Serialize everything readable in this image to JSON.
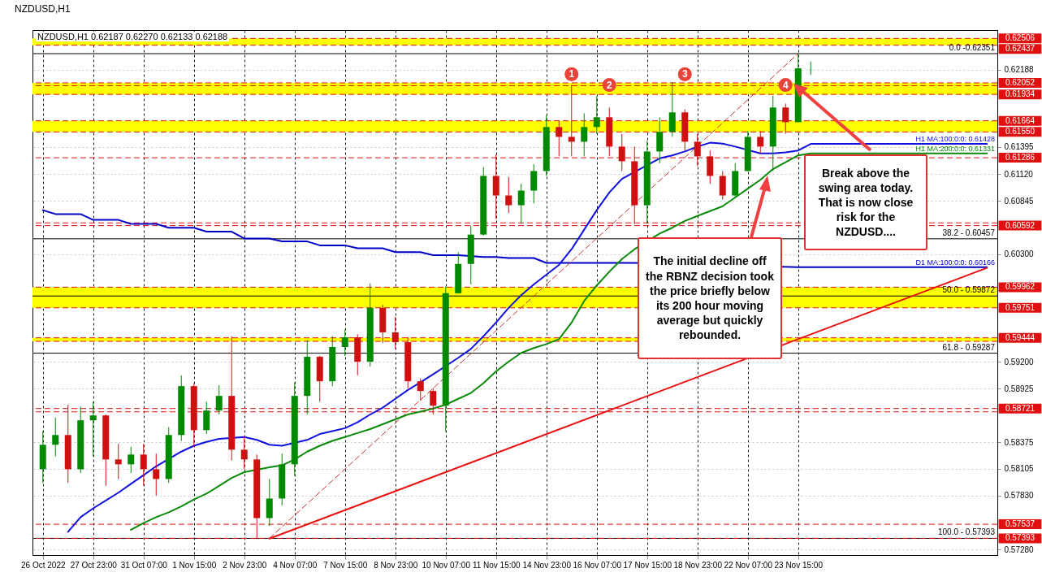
{
  "chart_data": {
    "type": "candlestick",
    "title": "NZDUSD,H1",
    "subtitle": "NZDUSD,H1  0.62187 0.62270 0.62133 0.62188",
    "categories": [
      "26 Oct 2022",
      null,
      null,
      null,
      "27 Oct 23:00",
      null,
      null,
      null,
      "31 Oct 07:00",
      null,
      null,
      null,
      "1 Nov 15:00",
      null,
      null,
      null,
      "2 Nov 23:00",
      null,
      null,
      null,
      "4 Nov 07:00",
      null,
      null,
      null,
      "7 Nov 15:00",
      null,
      null,
      null,
      "8 Nov 23:00",
      null,
      null,
      null,
      "10 Nov 07:00",
      null,
      null,
      null,
      "11 Nov 15:00",
      null,
      null,
      null,
      "14 Nov 23:00",
      null,
      null,
      null,
      "16 Nov 07:00",
      null,
      null,
      null,
      "17 Nov 15:00",
      null,
      null,
      null,
      "18 Nov 23:00",
      null,
      null,
      null,
      "22 Nov 07:00",
      null,
      null,
      null,
      "23 Nov 15:00",
      null,
      null,
      null,
      null,
      null,
      null,
      null,
      null,
      null,
      null,
      null,
      null,
      null,
      null,
      null
    ],
    "ohlc": [
      [
        0.581,
        0.5849,
        0.5796,
        0.5835
      ],
      [
        0.5835,
        0.5863,
        0.5823,
        0.5845
      ],
      [
        0.5845,
        0.5876,
        0.5796,
        0.581
      ],
      [
        0.581,
        0.5874,
        0.5806,
        0.586
      ],
      [
        0.586,
        0.5879,
        0.5823,
        0.5865
      ],
      [
        0.5865,
        0.5866,
        0.5793,
        0.582
      ],
      [
        0.582,
        0.5836,
        0.58,
        0.5815
      ],
      [
        0.5815,
        0.5833,
        0.5806,
        0.5825
      ],
      [
        0.5825,
        0.5836,
        0.5793,
        0.581
      ],
      [
        0.581,
        0.5826,
        0.5783,
        0.58
      ],
      [
        0.58,
        0.5853,
        0.5796,
        0.5845
      ],
      [
        0.5845,
        0.5906,
        0.5839,
        0.5895
      ],
      [
        0.5895,
        0.5898,
        0.5833,
        0.585
      ],
      [
        0.585,
        0.5879,
        0.5846,
        0.587
      ],
      [
        0.587,
        0.5896,
        0.5866,
        0.5885
      ],
      [
        0.5885,
        0.5946,
        0.5819,
        0.583
      ],
      [
        0.583,
        0.5843,
        0.581,
        0.582
      ],
      [
        0.582,
        0.5825,
        0.5739,
        0.576
      ],
      [
        0.576,
        0.58,
        0.5752,
        0.578
      ],
      [
        0.578,
        0.5826,
        0.5773,
        0.5815
      ],
      [
        0.5815,
        0.5899,
        0.5803,
        0.5885
      ],
      [
        0.5885,
        0.5942,
        0.5866,
        0.5925
      ],
      [
        0.5925,
        0.5926,
        0.5879,
        0.59
      ],
      [
        0.59,
        0.5946,
        0.5895,
        0.5935
      ],
      [
        0.5935,
        0.5953,
        0.5926,
        0.5945
      ],
      [
        0.5945,
        0.5948,
        0.5906,
        0.592
      ],
      [
        0.592,
        0.6,
        0.5915,
        0.5975
      ],
      [
        0.5975,
        0.5978,
        0.5939,
        0.595
      ],
      [
        0.595,
        0.5966,
        0.5933,
        0.594
      ],
      [
        0.594,
        0.5945,
        0.5893,
        0.59
      ],
      [
        0.59,
        0.5903,
        0.588,
        0.589
      ],
      [
        0.589,
        0.5893,
        0.5866,
        0.5875
      ],
      [
        0.5875,
        0.5997,
        0.5848,
        0.599
      ],
      [
        0.599,
        0.6032,
        0.599,
        0.602
      ],
      [
        0.602,
        0.6059,
        0.5999,
        0.605
      ],
      [
        0.605,
        0.6119,
        0.6049,
        0.611
      ],
      [
        0.611,
        0.6132,
        0.6066,
        0.609
      ],
      [
        0.609,
        0.6109,
        0.6072,
        0.608
      ],
      [
        0.608,
        0.6102,
        0.6061,
        0.6095
      ],
      [
        0.6095,
        0.6122,
        0.6082,
        0.6115
      ],
      [
        0.6115,
        0.6172,
        0.611,
        0.616
      ],
      [
        0.616,
        0.6167,
        0.613,
        0.615
      ],
      [
        0.615,
        0.6203,
        0.613,
        0.6145
      ],
      [
        0.6145,
        0.6174,
        0.613,
        0.616
      ],
      [
        0.616,
        0.6192,
        0.6153,
        0.617
      ],
      [
        0.617,
        0.618,
        0.613,
        0.614
      ],
      [
        0.614,
        0.6153,
        0.6115,
        0.6125
      ],
      [
        0.6125,
        0.614,
        0.6061,
        0.608
      ],
      [
        0.608,
        0.6146,
        0.6061,
        0.6135
      ],
      [
        0.6135,
        0.617,
        0.6123,
        0.6155
      ],
      [
        0.6155,
        0.6206,
        0.615,
        0.6175
      ],
      [
        0.6175,
        0.6178,
        0.6136,
        0.6145
      ],
      [
        0.6145,
        0.6153,
        0.612,
        0.613
      ],
      [
        0.613,
        0.6136,
        0.6102,
        0.611
      ],
      [
        0.611,
        0.6115,
        0.6086,
        0.609
      ],
      [
        0.609,
        0.6123,
        0.6088,
        0.6115
      ],
      [
        0.6115,
        0.6156,
        0.6115,
        0.615
      ],
      [
        0.615,
        0.6156,
        0.6133,
        0.614
      ],
      [
        0.614,
        0.6192,
        0.6115,
        0.618
      ],
      [
        0.618,
        0.6184,
        0.6153,
        0.6165
      ],
      [
        0.6165,
        0.62351,
        0.6165,
        0.622
      ],
      [
        0.62187,
        0.6227,
        0.62133,
        0.62188
      ],
      null,
      null,
      null,
      null,
      null,
      null,
      null,
      null,
      null,
      null,
      null,
      null,
      null,
      null
    ],
    "series": [
      {
        "type": "line",
        "name": "D1 MA:100:0:0: 0.60166",
        "color": "#0000c8",
        "values": [
          0.6075,
          0.6071,
          0.6071,
          0.6071,
          0.6065,
          0.6065,
          0.6065,
          0.6061,
          0.6061,
          0.6061,
          0.6057,
          0.6057,
          0.6057,
          0.6053,
          0.6053,
          0.6053,
          0.6046,
          0.6046,
          0.6046,
          0.6043,
          0.6043,
          0.6043,
          0.6039,
          0.6039,
          0.6039,
          0.6036,
          0.6036,
          0.6036,
          0.6032,
          0.6032,
          0.6032,
          0.6029,
          0.6029,
          0.6029,
          null,
          0.6027,
          0.6027,
          0.6026,
          0.6026,
          0.6026,
          0.6021,
          0.6021,
          0.6021,
          0.6021,
          0.6021,
          0.6021,
          0.6021,
          0.6021,
          null,
          null,
          null,
          null,
          null,
          null,
          null,
          null,
          null,
          null,
          null,
          null,
          0.60166,
          0.60166,
          0.60166,
          0.60166,
          0.60166,
          0.60166,
          0.60166,
          0.60166,
          0.60166,
          0.60166,
          0.60166,
          0.60166,
          0.60166,
          0.60166,
          0.60166,
          0.60166
        ]
      },
      {
        "type": "line",
        "color": "#e81010",
        "values": [
          null,
          null,
          null,
          null,
          null,
          null,
          null,
          null,
          null,
          null,
          null,
          null,
          null,
          null,
          null,
          null,
          null,
          null,
          0.5739,
          null,
          null,
          null,
          null,
          null,
          null,
          null,
          null,
          null,
          null,
          null,
          null,
          null,
          null,
          null,
          null,
          null,
          null,
          null,
          null,
          null,
          null,
          null,
          null,
          null,
          null,
          null,
          null,
          null,
          null,
          null,
          null,
          null,
          null,
          null,
          null,
          null,
          null,
          null,
          null,
          null,
          null,
          null,
          null,
          null,
          null,
          null,
          null,
          null,
          null,
          null,
          null,
          null,
          null,
          null,
          null,
          0.6016
        ]
      },
      {
        "type": "line",
        "line_style": "dashed",
        "color": "#c03030",
        "values": [
          null,
          null,
          null,
          null,
          null,
          null,
          null,
          null,
          null,
          null,
          null,
          null,
          null,
          null,
          null,
          null,
          null,
          null,
          0.57393,
          null,
          null,
          null,
          null,
          null,
          null,
          null,
          null,
          null,
          null,
          null,
          null,
          null,
          null,
          null,
          null,
          null,
          null,
          null,
          null,
          null,
          null,
          null,
          null,
          null,
          null,
          null,
          null,
          null,
          null,
          null,
          null,
          null,
          null,
          null,
          null,
          null,
          null,
          null,
          null,
          null,
          0.62351,
          null,
          null,
          null,
          null,
          null,
          null,
          null,
          null,
          null,
          null,
          null,
          null,
          null,
          null,
          null
        ]
      },
      {
        "type": "line",
        "name": "H1 MA:200:0:0: 0.61331",
        "color": "#0a8a0a",
        "values": [
          null,
          null,
          null,
          null,
          null,
          null,
          null,
          0.5748,
          0.5755,
          0.5761,
          0.5766,
          0.5772,
          0.5779,
          0.5785,
          0.5793,
          0.5801,
          0.5807,
          null,
          0.5812,
          0.5814,
          0.582,
          0.5828,
          0.5834,
          0.5839,
          0.5843,
          0.5847,
          0.5851,
          0.5856,
          0.5861,
          0.5866,
          0.5869,
          0.5872,
          0.5876,
          0.5882,
          0.5888,
          0.5898,
          0.591,
          0.592,
          0.5929,
          0.5934,
          0.5938,
          0.5943,
          0.596,
          0.5982,
          0.5998,
          0.6012,
          0.6025,
          0.6035,
          null,
          0.6051,
          0.6057,
          0.6064,
          0.6069,
          0.6074,
          0.6079,
          0.6088,
          0.6097,
          0.6106,
          0.6117,
          0.6124,
          0.6131,
          0.61331,
          0.61331,
          0.61331,
          0.61331,
          0.61331,
          0.61331,
          0.61331,
          0.61331,
          0.61331,
          0.61331,
          0.61331,
          0.61331,
          0.61331,
          0.61331,
          0.61331
        ]
      },
      {
        "type": "line",
        "name": "H1 MA:100:0:0: 0.61428",
        "color": "#1010e0",
        "values": [
          null,
          null,
          0.5746,
          0.5761,
          0.577,
          0.5778,
          0.5786,
          0.5795,
          0.5804,
          0.5813,
          null,
          0.5828,
          0.5834,
          0.5838,
          0.5841,
          null,
          0.5843,
          0.584,
          0.5835,
          0.5834,
          null,
          0.584,
          0.5846,
          0.5849,
          0.5852,
          0.5858,
          0.5866,
          0.5873,
          0.5882,
          0.5891,
          0.5899,
          0.5907,
          null,
          0.5924,
          0.5933,
          0.5946,
          0.596,
          0.5975,
          0.5988,
          0.5999,
          0.6009,
          0.6019,
          0.6035,
          0.6055,
          0.6075,
          0.6093,
          0.6107,
          null,
          null,
          0.6128,
          0.6131,
          0.6135,
          0.614,
          0.6144,
          0.6143,
          0.614,
          null,
          0.6133,
          0.6133,
          0.6134,
          0.6136,
          0.61428,
          0.61428,
          0.61428,
          0.61428,
          0.61428,
          0.61428,
          0.61428,
          0.61428,
          0.61428,
          0.61428,
          0.61428,
          0.61428,
          0.61428,
          0.61428,
          0.61428
        ]
      },
      {
        "type": "scatter",
        "marker": "circle",
        "color": "#e8443a",
        "values": [
          null,
          null,
          null,
          null,
          null,
          null,
          null,
          null,
          null,
          null,
          null,
          null,
          null,
          null,
          null,
          null,
          null,
          null,
          null,
          null,
          null,
          null,
          null,
          null,
          null,
          null,
          null,
          null,
          null,
          null,
          null,
          null,
          null,
          null,
          null,
          null,
          null,
          null,
          null,
          null,
          null,
          null,
          0.6214,
          null,
          null,
          0.6203,
          null,
          null,
          null,
          null,
          null,
          0.6214,
          null,
          null,
          null,
          null,
          null,
          null,
          null,
          0.6203,
          null,
          null,
          null,
          null,
          null,
          null,
          null,
          null,
          null,
          null,
          null,
          null,
          null,
          null,
          null,
          null
        ]
      }
    ],
    "ylim": [
      0.57222,
      0.62592
    ],
    "yticks": [
      0.62188,
      0.61395,
      {
        "value": 0.6112,
        "label": "0.61120"
      },
      0.60845,
      {
        "value": 0.603,
        "label": "0.60300"
      },
      {
        "value": 0.592,
        "label": "0.59200"
      },
      0.58925,
      0.58375,
      0.58105,
      {
        "value": 0.5783,
        "label": "0.57830"
      },
      {
        "value": 0.5728,
        "label": "0.57280"
      }
    ],
    "grid": true,
    "bands": [
      {
        "axis": "y",
        "from": 0.62437,
        "to": 0.62506,
        "color": "#ffff00"
      },
      {
        "axis": "y",
        "from": 0.61934,
        "to": 0.62052,
        "color": "#ffff00"
      },
      {
        "axis": "y",
        "from": 0.6155,
        "to": 0.61664,
        "color": "#ffff00"
      },
      {
        "axis": "y",
        "from": 0.59751,
        "to": 0.59962,
        "color": "#ffff00"
      },
      {
        "axis": "y",
        "from": 0.59408,
        "to": 0.59444,
        "color": "#ffff00"
      }
    ],
    "ref_lines": [
      {
        "axis": "y",
        "value": 0.62506,
        "label": "0.62506",
        "color": "#e01010",
        "line_style": "dashed"
      },
      {
        "axis": "y",
        "value": 0.62437,
        "label": "0.62437",
        "color": "#e01010",
        "line_style": "dashed"
      },
      {
        "axis": "y",
        "value": 0.62052,
        "label": "0.62052",
        "color": "#e01010",
        "line_style": "dashed"
      },
      {
        "axis": "y",
        "value": 0.62023,
        "color": "#e01010",
        "line_style": "dashed"
      },
      {
        "axis": "y",
        "value": 0.61934,
        "label": "0.61934",
        "color": "#e01010",
        "line_style": "dashed"
      },
      {
        "axis": "y",
        "value": 0.61664,
        "label": "0.61664",
        "color": "#e01010",
        "line_style": "dashed"
      },
      {
        "axis": "y",
        "value": 0.6155,
        "label": "0.61550",
        "color": "#e01010",
        "line_style": "dashed"
      },
      {
        "axis": "y",
        "value": 0.61286,
        "label": "0.61286",
        "color": "#e01010",
        "line_style": "dashed"
      },
      {
        "axis": "y",
        "value": 0.6062,
        "color": "#e01010",
        "line_style": "dashed"
      },
      {
        "axis": "y",
        "value": 0.60592,
        "label": "0.60592",
        "color": "#e01010",
        "line_style": "dashed"
      },
      {
        "axis": "y",
        "value": 0.59962,
        "label": "0.59962",
        "color": "#e01010",
        "line_style": "dashed"
      },
      {
        "axis": "y",
        "value": 0.59751,
        "label": "0.59751",
        "color": "#e01010",
        "line_style": "dashed"
      },
      {
        "axis": "y",
        "value": 0.59444,
        "label": "0.59444",
        "color": "#e01010",
        "line_style": "dashed"
      },
      {
        "axis": "y",
        "value": 0.59408,
        "color": "#e01010",
        "line_style": "dashed"
      },
      {
        "axis": "y",
        "value": 0.58721,
        "label": "0.58721",
        "color": "#e01010",
        "line_style": "dashed"
      },
      {
        "axis": "y",
        "value": 0.58687,
        "color": "#e01010",
        "line_style": "dashed"
      },
      {
        "axis": "y",
        "value": 0.57537,
        "label": "0.57537",
        "color": "#e01010",
        "line_style": "dashed"
      },
      {
        "axis": "y",
        "value": 0.57393,
        "label": "0.57393",
        "color": "#e01010",
        "line_style": "dashed"
      },
      {
        "axis": "y",
        "value": 0.62351,
        "color": "#000000",
        "line_style": "solid"
      },
      {
        "axis": "y",
        "value": 0.60457,
        "color": "#000000",
        "line_style": "solid"
      },
      {
        "axis": "y",
        "value": 0.59872,
        "color": "#000000",
        "line_style": "solid"
      },
      {
        "axis": "y",
        "value": 0.59287,
        "color": "#000000",
        "line_style": "solid"
      },
      {
        "axis": "y",
        "value": 0.57393,
        "color": "#000000",
        "line_style": "solid"
      }
    ],
    "annotations": [
      "The initial decline off the RBNZ decision took the price briefly below its 200 hour moving average but quickly rebounded.",
      "Break above the swing area today. That is now close risk for the NZDUSD....",
      {
        "text": "0.0 -0.62351",
        "y": 0.62351
      },
      {
        "text": "38.2 - 0.60457",
        "y": 0.60457
      },
      {
        "text": "50.0 - 0.59872",
        "y": 0.59872
      },
      {
        "text": "61.8 - 0.59287",
        "y": 0.59287
      },
      {
        "text": "100.0 - 0.57393",
        "y": 0.57393
      },
      {
        "text": "1",
        "y": 0.6214
      },
      {
        "text": "2",
        "y": 0.6203
      },
      {
        "text": "3",
        "y": 0.6214
      },
      {
        "text": "4",
        "y": 0.6203
      }
    ]
  }
}
